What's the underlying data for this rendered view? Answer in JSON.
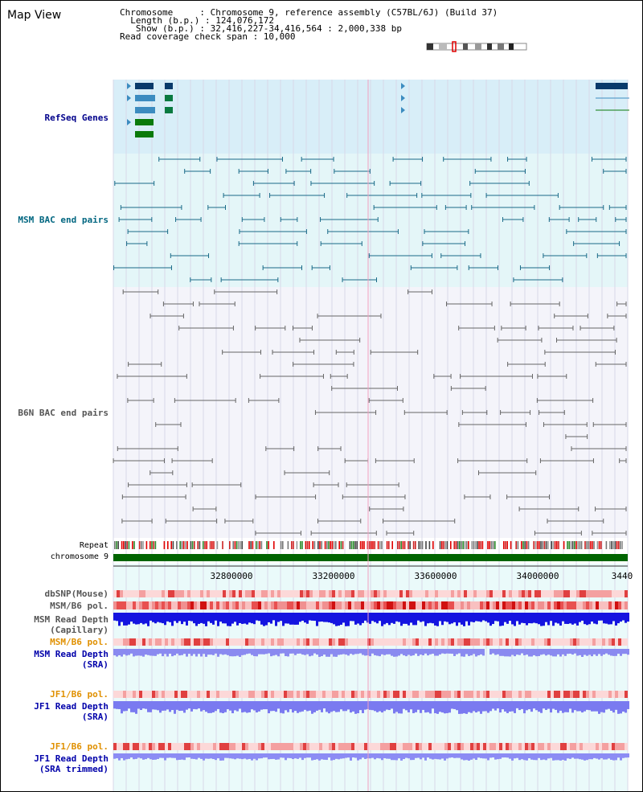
{
  "map_title": "Map View",
  "header": {
    "lines": [
      "Chromosome     : Chromosome 9, reference assembly (C57BL/6J) (Build 37)",
      "  Length (b.p.) : 124,076,172",
      "   Show (b.p.) : 32,416,227-34,416,564 : 2,000,338 bp",
      "Read coverage check span : 10,000"
    ]
  },
  "tracks": {
    "refseq": "RefSeq Genes",
    "msm_bac": "MSM BAC end pairs",
    "b6n_bac": "B6N BAC end pairs",
    "repeat": "Repeat",
    "chromosome": "chromosome 9",
    "dbsnp": "dbSNP(Mouse)",
    "msm_b6_pol": "MSM/B6 pol.",
    "msm_depth_cap_1": "MSM Read Depth",
    "msm_depth_cap_2": "(Capillary)",
    "msm_b6_pol_2": "MSM/B6 pol.",
    "msm_depth_sra_1": "MSM Read Depth",
    "msm_depth_sra_2": "(SRA)",
    "jf1_b6_pol": "JF1/B6 pol.",
    "jf1_depth_sra_1": "JF1 Read Depth",
    "jf1_depth_sra_2": "(SRA)",
    "jf1_b6_pol_2": "JF1/B6 pol.",
    "jf1_depth_trim_1": "JF1 Read Depth",
    "jf1_depth_trim_2": "(SRA trimmed)"
  },
  "ruler": {
    "ticks": [
      "32800000",
      "33200000",
      "33600000",
      "34000000",
      "3440"
    ]
  },
  "colors": {
    "refseq_bg": "#d8eef8",
    "msm_bg": "#e4f6f8",
    "b6n_bg": "#f4f4fa",
    "chromosome_bar": "#006400",
    "snp_red": "#e83030",
    "depth_blue": "#0000e0",
    "depth_violet": "#8080f0"
  }
}
